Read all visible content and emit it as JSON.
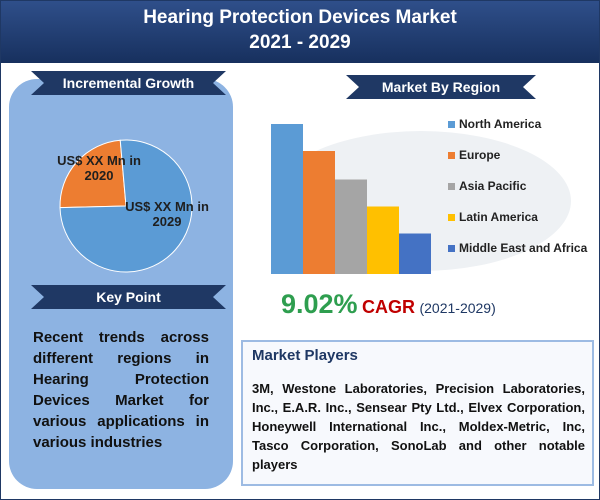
{
  "title": "Hearing Protection Devices Market",
  "subtitle": "2021 - 2029",
  "chart_data": [
    {
      "type": "pie",
      "title": "Incremental Growth",
      "categories": [
        "US$ XX Mn in 2020",
        "US$ XX Mn in 2029"
      ],
      "values": [
        24,
        76
      ],
      "colors": [
        "#ed7d31",
        "#5b9bd5"
      ]
    },
    {
      "type": "bar",
      "title": "Market By Region",
      "categories": [
        "North America",
        "Europe",
        "Asia Pacific",
        "Latin America",
        "Middle East and Africa"
      ],
      "values": [
        100,
        82,
        63,
        45,
        27
      ],
      "colors": [
        "#5b9bd5",
        "#ed7d31",
        "#a5a5a5",
        "#ffc000",
        "#4472c4"
      ],
      "ylim": [
        0,
        100
      ]
    }
  ],
  "cagr": {
    "value": "9.02%",
    "label": "CAGR",
    "period": "(2021-2029)"
  },
  "key_point": {
    "heading": "Key Point",
    "text": "Recent trends across different regions in Hearing Protection Devices Market for various applications in various industries"
  },
  "market_players": {
    "heading": "Market Players",
    "text": "3M, Westone Laboratories, Precision Laboratories, Inc., E.A.R. Inc., Sensear Pty Ltd., Elvex Corporation, Honeywell International Inc., Moldex-Metric, Inc, Tasco Corporation, SonoLab and other notable players"
  }
}
